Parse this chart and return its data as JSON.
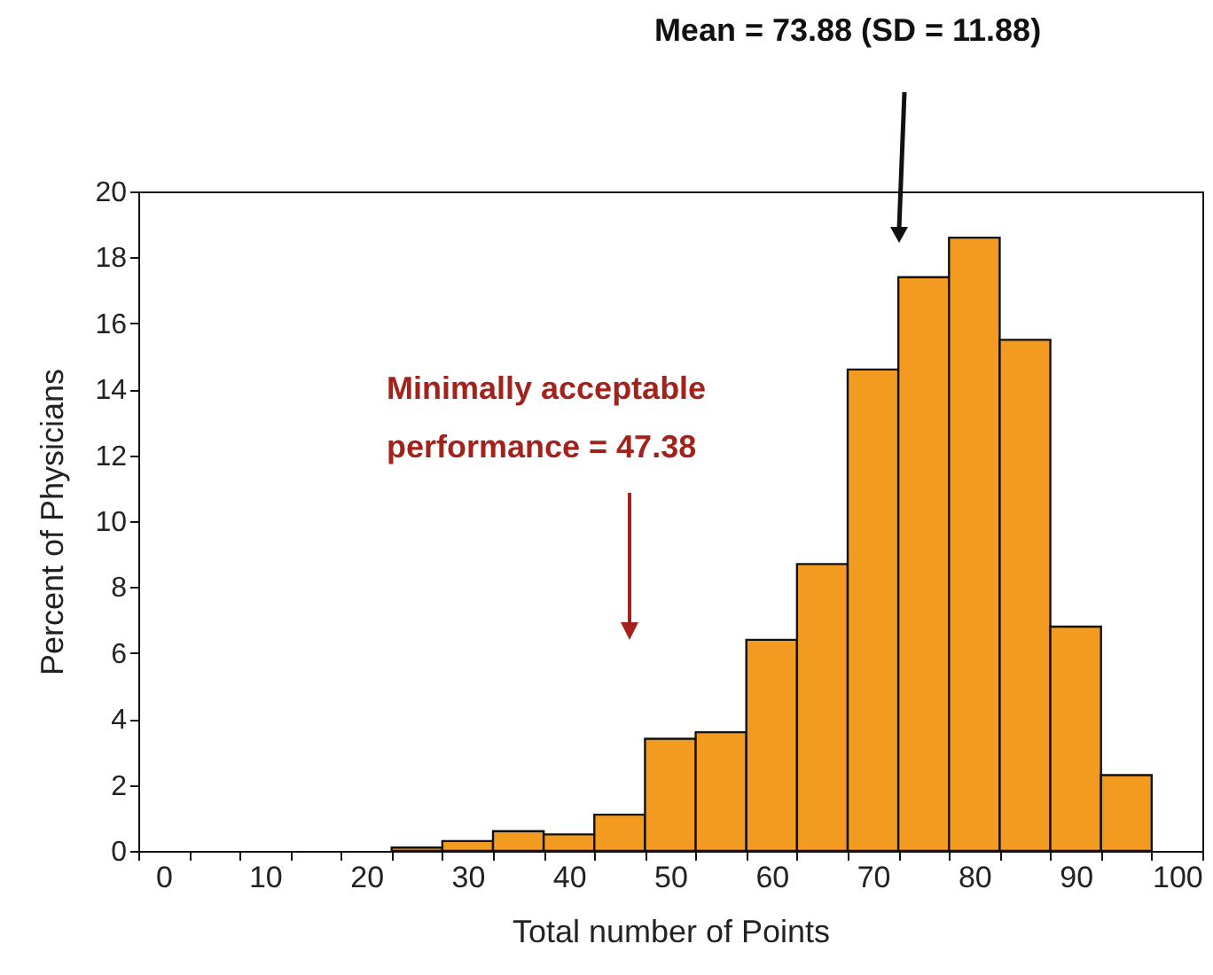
{
  "chart_data": {
    "type": "bar",
    "xlabel": "Total number of Points",
    "ylabel": "Percent of Physicians",
    "categories": [
      "0",
      null,
      "10",
      null,
      "20",
      null,
      "30",
      null,
      "40",
      null,
      "50",
      null,
      "60",
      null,
      "70",
      null,
      "80",
      null,
      "90",
      null,
      "100"
    ],
    "values": [
      null,
      null,
      null,
      null,
      null,
      0.1,
      0.3,
      0.6,
      0.5,
      1.1,
      3.4,
      3.6,
      6.4,
      8.7,
      14.6,
      17.4,
      18.6,
      15.5,
      6.8,
      2.3,
      null
    ],
    "color": "#f39a21",
    "ylim": [
      0,
      20
    ],
    "yticks": [
      0,
      2,
      4,
      6,
      8,
      10,
      12,
      14,
      16,
      18,
      20
    ],
    "grid": false,
    "annotations": [
      "Mean = 73.88 (SD = 11.88)",
      "Minimally acceptable performance = 47.38"
    ]
  }
}
